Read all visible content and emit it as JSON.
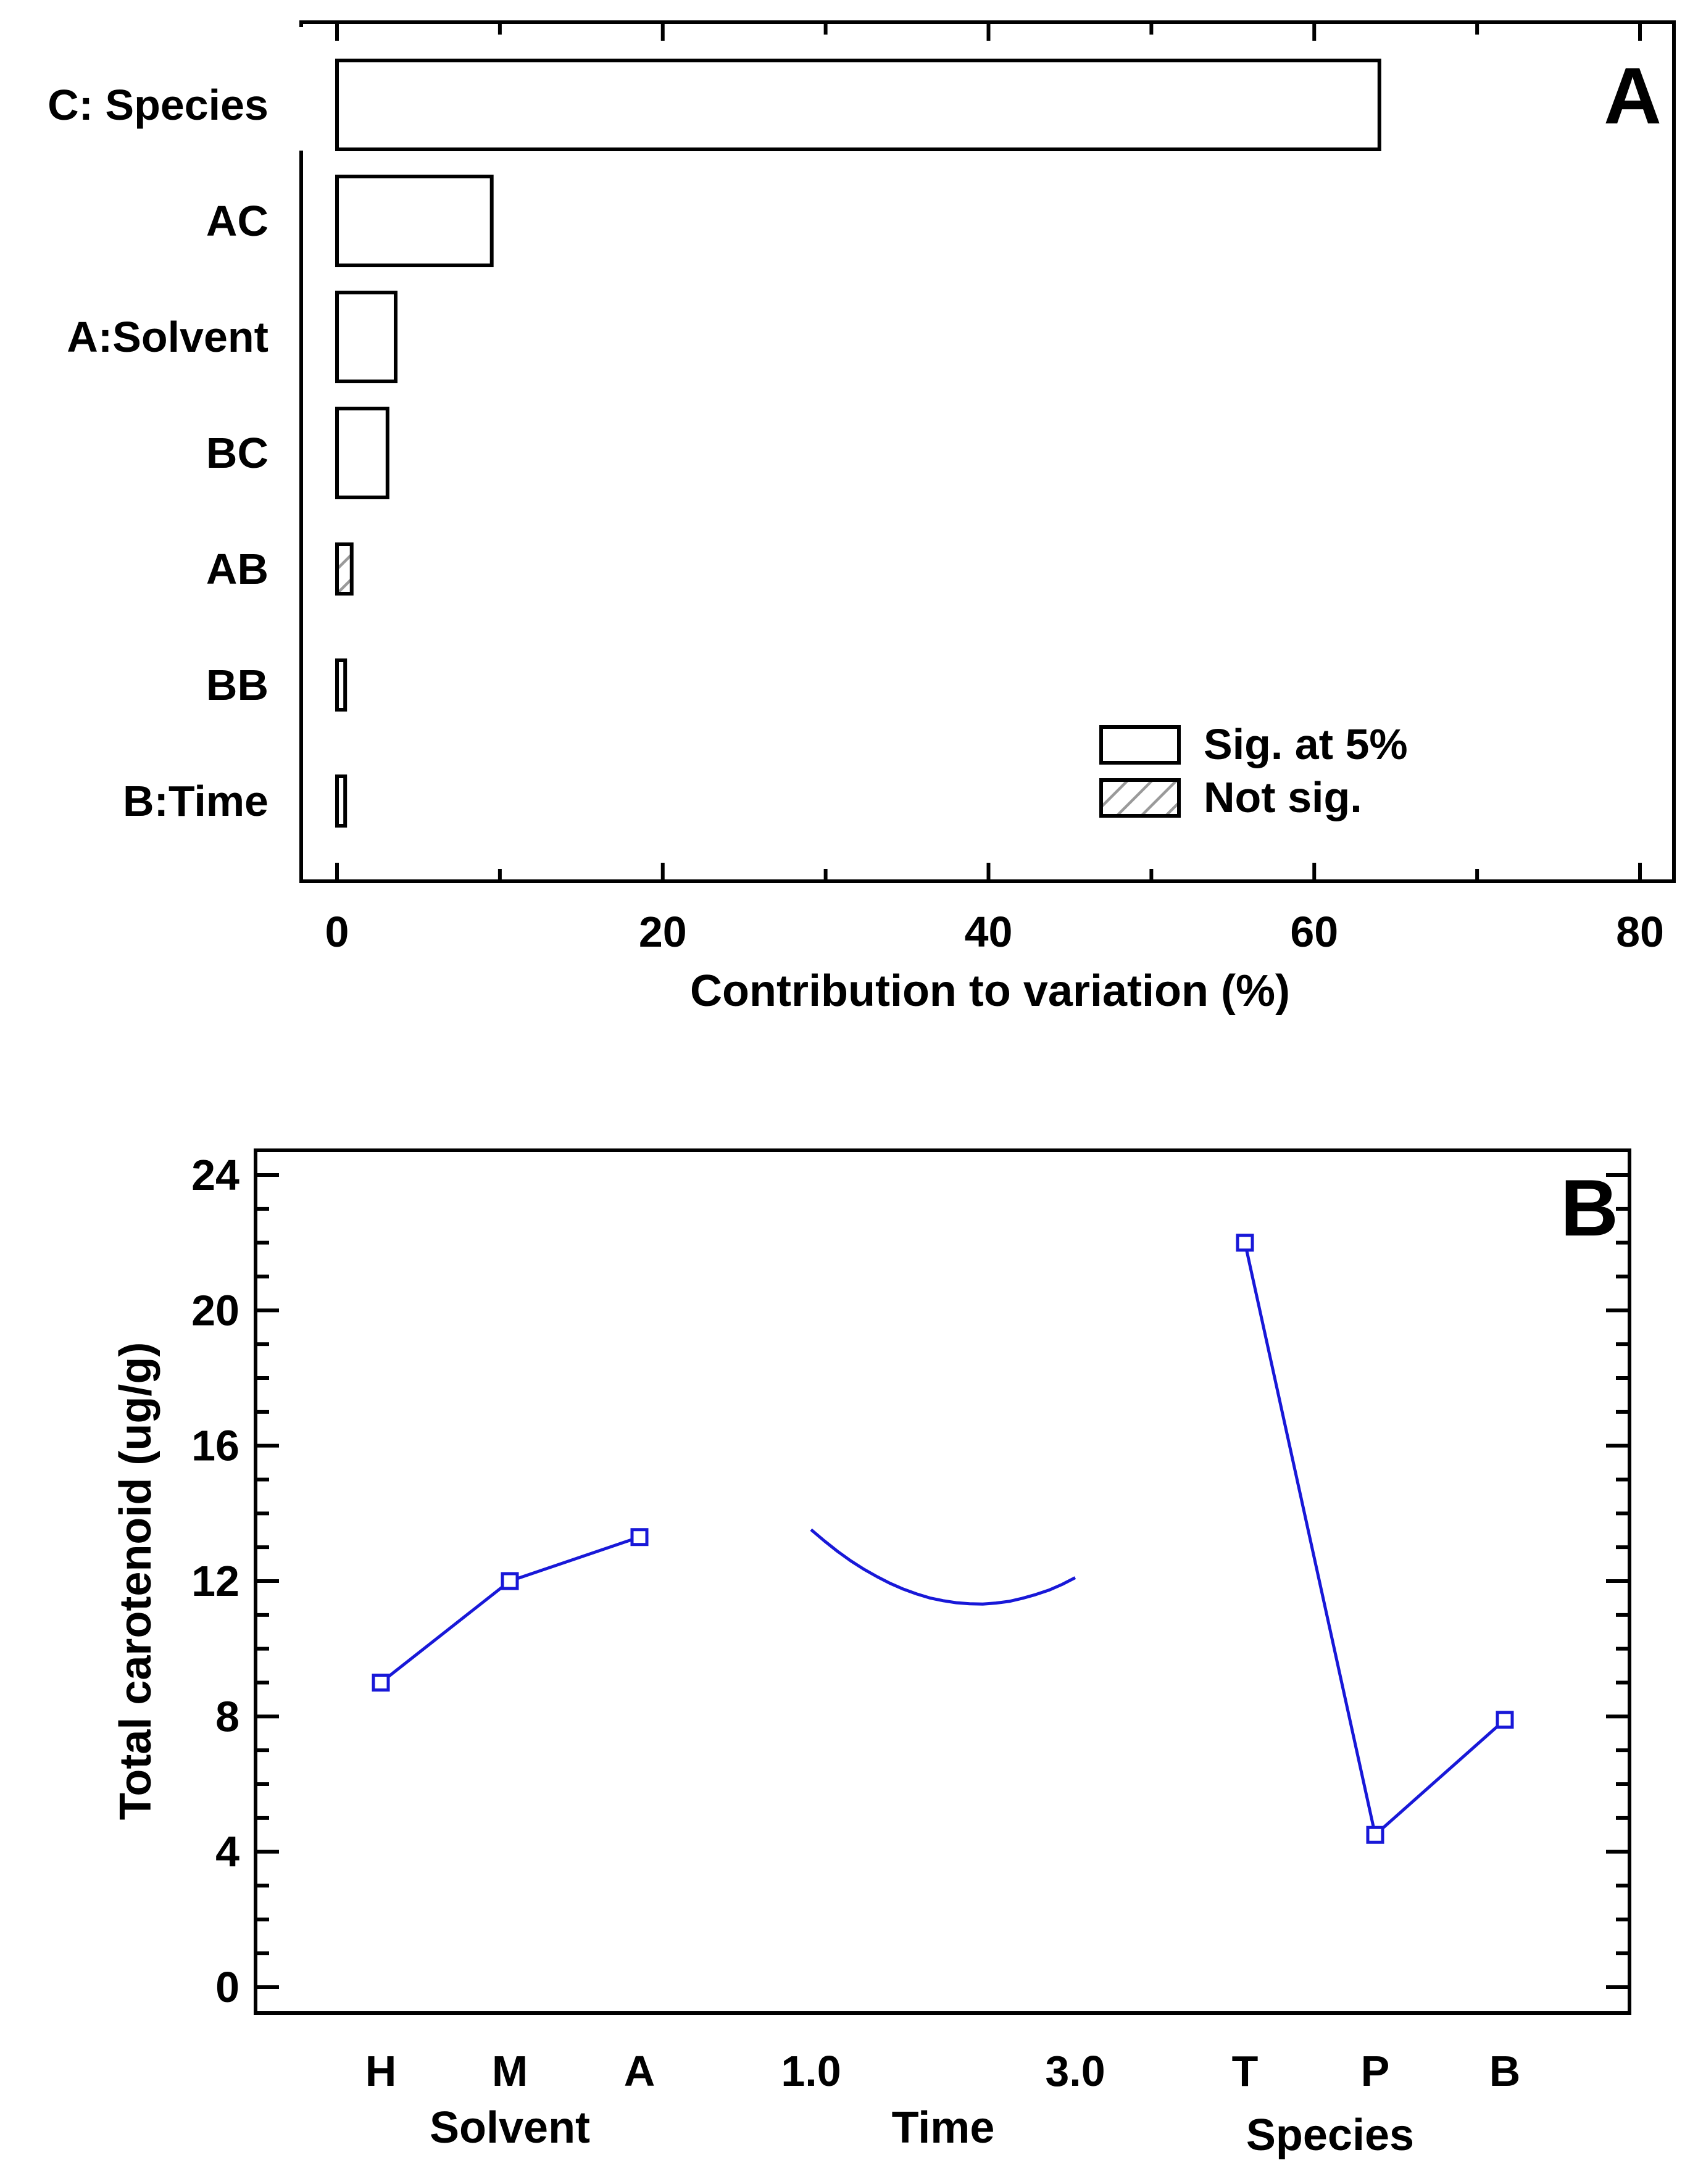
{
  "colors": {
    "axis": "#000000",
    "bar_fill": "#ffffff",
    "bar_stroke": "#000000",
    "hatch": "#9a9a9a",
    "series": "#1818d8",
    "background": "#ffffff"
  },
  "chart_data": [
    {
      "panel_label": "A",
      "type": "bar",
      "orientation": "horizontal",
      "title": "",
      "categories": [
        "C: Species",
        "AC",
        "A:Solvent",
        "BC",
        "AB",
        "BB",
        "B:Time"
      ],
      "values": [
        64.0,
        9.5,
        3.6,
        3.1,
        0.9,
        0.5,
        0.5
      ],
      "significant": [
        true,
        true,
        true,
        true,
        false,
        true,
        true
      ],
      "xlabel": "Contribution to variation (%)",
      "ylabel": "",
      "xlim": [
        -2.2,
        80.5
      ],
      "x_ticks": [
        0,
        20,
        40,
        60,
        80
      ],
      "x_tick_labels": [
        "0",
        "20",
        "40",
        "60",
        "80"
      ],
      "x_minor_step": 10,
      "legend": {
        "position": "bottom-right",
        "entries": [
          {
            "label": "Sig. at 5%",
            "style": "plain"
          },
          {
            "label": "Not sig.",
            "style": "hatched"
          }
        ]
      }
    },
    {
      "panel_label": "B",
      "type": "line",
      "title": "",
      "ylabel": "Total carotenoid (ug/g)",
      "ylim": [
        -0.8,
        24.7
      ],
      "y_ticks": [
        0,
        4,
        8,
        12,
        16,
        20,
        24
      ],
      "y_tick_labels": [
        "0",
        "4",
        "8",
        "12",
        "16",
        "20",
        "24"
      ],
      "y_minor_step": 1,
      "grid": false,
      "series": [
        {
          "name": "Solvent",
          "factor_label": "Solvent",
          "categories": [
            "H",
            "M",
            "A"
          ],
          "values": [
            9.0,
            12.0,
            13.3
          ],
          "markers": true
        },
        {
          "name": "Time",
          "factor_label": "Time",
          "x": [
            1.0,
            1.1,
            1.2,
            1.3,
            1.4,
            1.5,
            1.6,
            1.7,
            1.8,
            1.9,
            2.0,
            2.1,
            2.2,
            2.3,
            2.4,
            2.5,
            2.6,
            2.7,
            2.8,
            2.9,
            3.0
          ],
          "values": [
            13.52,
            13.19,
            12.88,
            12.6,
            12.35,
            12.13,
            11.93,
            11.76,
            11.62,
            11.5,
            11.42,
            11.36,
            11.33,
            11.32,
            11.35,
            11.4,
            11.49,
            11.6,
            11.73,
            11.9,
            12.1
          ],
          "x_tick_labels": [
            "1.0",
            "3.0"
          ],
          "markers": false
        },
        {
          "name": "Species",
          "factor_label": "Species",
          "categories": [
            "T",
            "P",
            "B"
          ],
          "values": [
            22.0,
            4.5,
            7.9
          ],
          "markers": true
        }
      ]
    }
  ]
}
